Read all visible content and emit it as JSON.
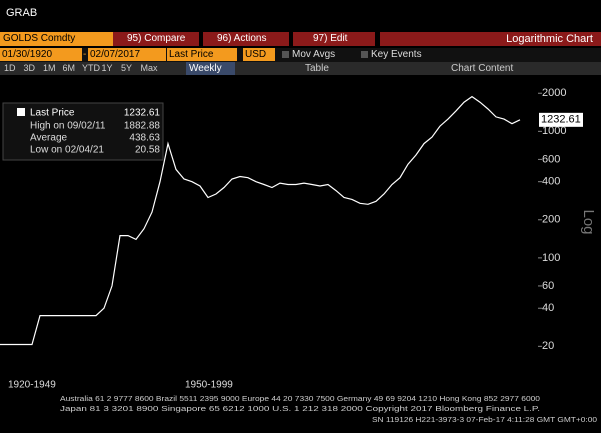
{
  "header": {
    "title": "GRAB"
  },
  "toolbar": {
    "security": "GOLDS Comdty",
    "buttons": [
      "95) Compare",
      "96) Actions",
      "97) Edit"
    ],
    "chart_type": "Logarithmic Chart"
  },
  "settings": {
    "start_date": "01/30/1920",
    "date_separator": "-",
    "end_date": "02/07/2017",
    "field": "Last Price",
    "currency": "USD",
    "mov_avgs": "Mov Avgs",
    "key_events": "Key Events"
  },
  "tabs": {
    "periods": [
      "1D",
      "3D",
      "1M",
      "6M",
      "YTD",
      "1Y",
      "5Y",
      "Max"
    ],
    "frequency": "Weekly",
    "table": "Table",
    "chart_content": "Chart Content"
  },
  "chart_data": {
    "type": "line",
    "log_scale": true,
    "y_axis_label": "Log",
    "ylim": [
      13,
      2200
    ],
    "yticks": [
      20,
      40,
      60,
      100,
      200,
      400,
      600,
      1000,
      2000
    ],
    "x_period_labels": [
      "1920-1949",
      "1950-1999"
    ],
    "series": [
      {
        "name": "Last Price",
        "color": "#ffffff",
        "values": [
          20.67,
          20.67,
          20.67,
          20.67,
          20.67,
          35,
          35,
          35,
          35,
          35,
          35,
          35,
          35,
          40,
          60,
          150,
          150,
          140,
          170,
          230,
          400,
          800,
          500,
          420,
          400,
          370,
          300,
          320,
          360,
          420,
          440,
          430,
          400,
          380,
          360,
          390,
          380,
          380,
          390,
          380,
          370,
          380,
          340,
          300,
          290,
          270,
          265,
          280,
          320,
          380,
          430,
          550,
          650,
          800,
          900,
          1100,
          1250,
          1450,
          1700,
          1880,
          1700,
          1500,
          1300,
          1250,
          1150,
          1232.61
        ]
      }
    ],
    "last_value": 1232.61,
    "legend_stats": [
      {
        "label": "High on 09/02/11",
        "value": 1882.88
      },
      {
        "label": "Average",
        "value": 438.63
      },
      {
        "label": "Low on 02/04/21",
        "value": 20.58
      }
    ]
  },
  "footer": {
    "lines": [
      "Australia 61 2 9777 8600 Brazil 5511 2395 9000 Europe 44 20 7330 7500 Germany 49 69 9204 1210 Hong Kong 852 2977 6000",
      "Japan 81 3 3201 8900 Singapore 65 6212 1000 U.S. 1 212 318 2000 Copyright 2017 Bloomberg Finance L.P.",
      "SN 119126 H221-3973-3 07-Feb-17 4:11:28 GMT GMT+0:00"
    ]
  }
}
